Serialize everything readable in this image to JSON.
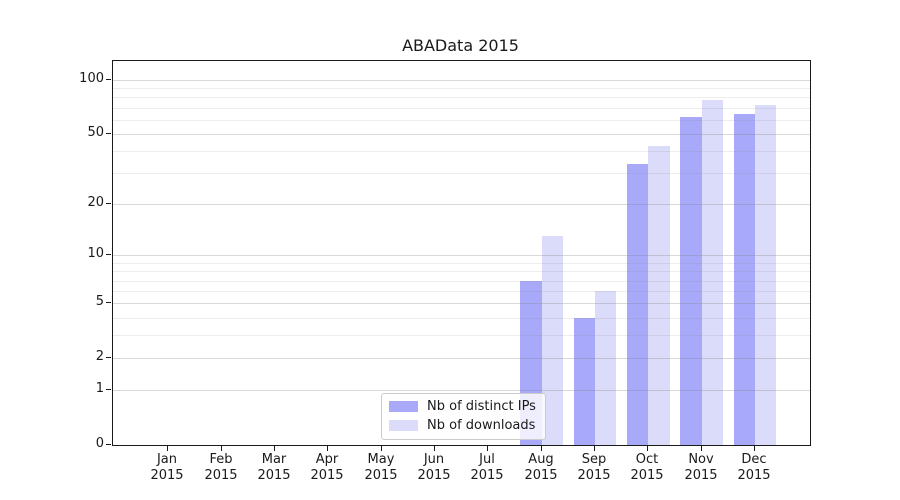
{
  "title": "ABAData 2015",
  "legend": {
    "items": [
      {
        "label": "Nb of distinct IPs",
        "color": "#a9a9f9"
      },
      {
        "label": "Nb of downloads",
        "color": "#dbdbfa"
      }
    ]
  },
  "chart_data": {
    "type": "bar",
    "title": "ABAData 2015",
    "xlabel": "",
    "ylabel": "",
    "scale": "log(1+y)",
    "categories": [
      "Jan",
      "Feb",
      "Mar",
      "Apr",
      "May",
      "Jun",
      "Jul",
      "Aug",
      "Sep",
      "Oct",
      "Nov",
      "Dec"
    ],
    "category_year": "2015",
    "series": [
      {
        "name": "Nb of distinct IPs",
        "color": "#a9a9f9",
        "values": [
          0,
          0,
          0,
          0,
          0,
          0,
          0,
          7,
          4,
          34,
          62,
          65
        ]
      },
      {
        "name": "Nb of downloads",
        "color": "#dbdbfa",
        "values": [
          0,
          0,
          0,
          0,
          0,
          0,
          0,
          13,
          6,
          43,
          77,
          73
        ]
      }
    ],
    "y_major_ticks": [
      0,
      1,
      2,
      5,
      10,
      20,
      50,
      100
    ],
    "y_major_gridlines": [
      1,
      2,
      5,
      10,
      20,
      50,
      100
    ],
    "y_minor_gridlines": [
      3,
      4,
      6,
      7,
      8,
      9,
      30,
      40,
      60,
      70,
      80,
      90
    ],
    "ylim": [
      0,
      128
    ],
    "grid": "on",
    "legend_position": "lower-center-inside"
  }
}
